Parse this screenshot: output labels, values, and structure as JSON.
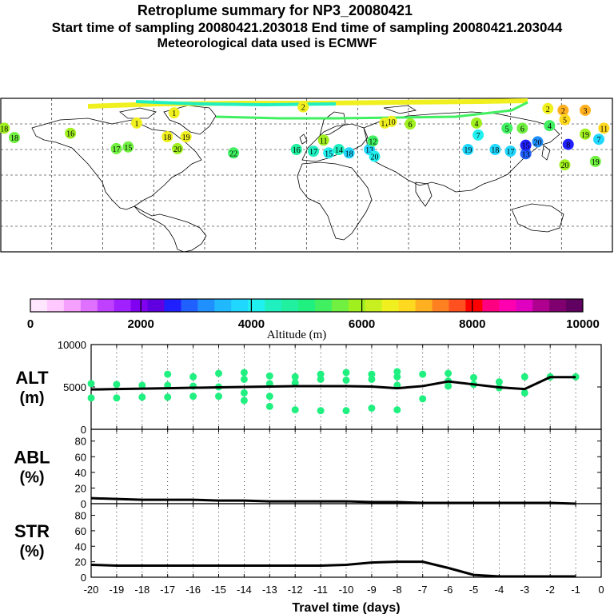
{
  "header": {
    "title": "Retroplume summary for NP3_20080421",
    "sampling": "Start time of sampling 20080421.203018     End time of sampling 20080421.203044",
    "met": "Meteorological data used is ECMWF"
  },
  "colorbar": {
    "label": "Altitude (m)",
    "ticks": [
      "0",
      "2000",
      "4000",
      "6000",
      "8000",
      "10000"
    ],
    "colors": [
      "#ffe6ff",
      "#ffc8ff",
      "#f5a0ff",
      "#e070ff",
      "#c040ff",
      "#a020ff",
      "#8000f0",
      "#6000e0",
      "#2020ff",
      "#2060ff",
      "#2090ff",
      "#20b8ff",
      "#20d8ff",
      "#20f0f0",
      "#20f0c0",
      "#20f0a0",
      "#20f080",
      "#40f060",
      "#70f040",
      "#a0f020",
      "#c8f020",
      "#f0f020",
      "#ffd820",
      "#ffb020",
      "#ff8020",
      "#ff5020",
      "#ff0000",
      "#ff0080",
      "#ff00b0",
      "#e000c0",
      "#b00090",
      "#800070",
      "#600060"
    ]
  },
  "map": {
    "description": "",
    "colors": {
      "ocean": "#ffffff",
      "coast": "#000000"
    }
  },
  "chart_data": [
    {
      "type": "line",
      "name": "ALT",
      "ylabel": "ALT\n(m)",
      "ylabel_lines": [
        "ALT",
        "(m)"
      ],
      "ylim": [
        0,
        10000
      ],
      "yticks": [
        "0",
        "5000",
        "10000"
      ],
      "x": [
        -20,
        -19,
        -18,
        -17,
        -16,
        -15,
        -14,
        -13,
        -12,
        -11,
        -10,
        -9,
        -8,
        -7,
        -6,
        -5,
        -4,
        -3,
        -2,
        -1
      ],
      "values": [
        4700,
        4750,
        4800,
        4850,
        4900,
        4950,
        5000,
        5050,
        5100,
        5100,
        5100,
        5050,
        4850,
        5100,
        5650,
        5300,
        4950,
        4750,
        6150,
        6150
      ],
      "scatter": [
        {
          "x": -20,
          "y": 5400
        },
        {
          "x": -20,
          "y": 3700
        },
        {
          "x": -19,
          "y": 5300
        },
        {
          "x": -19,
          "y": 3700
        },
        {
          "x": -18,
          "y": 5200
        },
        {
          "x": -18,
          "y": 3800
        },
        {
          "x": -17,
          "y": 6500
        },
        {
          "x": -17,
          "y": 5200
        },
        {
          "x": -17,
          "y": 3800
        },
        {
          "x": -16,
          "y": 6200
        },
        {
          "x": -16,
          "y": 5100
        },
        {
          "x": -16,
          "y": 3900
        },
        {
          "x": -15,
          "y": 6600
        },
        {
          "x": -15,
          "y": 5000
        },
        {
          "x": -15,
          "y": 3900
        },
        {
          "x": -14,
          "y": 6700
        },
        {
          "x": -14,
          "y": 5900
        },
        {
          "x": -14,
          "y": 4300
        },
        {
          "x": -14,
          "y": 3400
        },
        {
          "x": -13,
          "y": 6300
        },
        {
          "x": -13,
          "y": 5400
        },
        {
          "x": -13,
          "y": 3900
        },
        {
          "x": -13,
          "y": 2700
        },
        {
          "x": -12,
          "y": 6200
        },
        {
          "x": -12,
          "y": 5500
        },
        {
          "x": -12,
          "y": 2300
        },
        {
          "x": -11,
          "y": 6500
        },
        {
          "x": -11,
          "y": 5900
        },
        {
          "x": -11,
          "y": 2200
        },
        {
          "x": -10,
          "y": 6700
        },
        {
          "x": -10,
          "y": 5800
        },
        {
          "x": -10,
          "y": 2200
        },
        {
          "x": -9,
          "y": 6500
        },
        {
          "x": -9,
          "y": 5900
        },
        {
          "x": -9,
          "y": 2500
        },
        {
          "x": -8,
          "y": 6800
        },
        {
          "x": -8,
          "y": 6200
        },
        {
          "x": -8,
          "y": 5200
        },
        {
          "x": -8,
          "y": 2300
        },
        {
          "x": -7,
          "y": 6500
        },
        {
          "x": -7,
          "y": 3600
        },
        {
          "x": -6,
          "y": 6600
        },
        {
          "x": -6,
          "y": 5700
        },
        {
          "x": -6,
          "y": 5100
        },
        {
          "x": -5,
          "y": 6100
        },
        {
          "x": -5,
          "y": 5300
        },
        {
          "x": -4,
          "y": 5600
        },
        {
          "x": -4,
          "y": 4900
        },
        {
          "x": -3,
          "y": 6200
        },
        {
          "x": -3,
          "y": 4300
        },
        {
          "x": -2,
          "y": 6200
        },
        {
          "x": -1,
          "y": 6200
        }
      ]
    },
    {
      "type": "line",
      "name": "ABL",
      "ylabel_lines": [
        "ABL",
        "(%)"
      ],
      "ylim": [
        0,
        95
      ],
      "yticks": [
        "0",
        "20",
        "40",
        "60",
        "80"
      ],
      "x": [
        -20,
        -19,
        -18,
        -17,
        -16,
        -15,
        -14,
        -13,
        -12,
        -11,
        -10,
        -9,
        -8,
        -7,
        -6,
        -5,
        -4,
        -3,
        -2,
        -1
      ],
      "values": [
        7,
        6,
        5,
        5,
        5,
        4,
        4,
        3,
        3,
        3,
        3,
        2,
        2,
        1,
        1,
        1,
        1,
        1,
        1,
        0
      ]
    },
    {
      "type": "line",
      "name": "STR",
      "ylabel_lines": [
        "STR",
        "(%)"
      ],
      "ylim": [
        0,
        95
      ],
      "yticks": [
        "0",
        "20",
        "40",
        "60",
        "80"
      ],
      "x": [
        -20,
        -19,
        -18,
        -17,
        -16,
        -15,
        -14,
        -13,
        -12,
        -11,
        -10,
        -9,
        -8,
        -7,
        -6,
        -5,
        -4,
        -3,
        -2,
        -1
      ],
      "values": [
        16,
        15,
        15,
        15,
        15,
        15,
        15,
        15,
        15,
        15,
        16,
        19,
        20,
        20,
        12,
        3,
        1,
        1,
        1,
        1
      ],
      "xlabel": "Travel time (days)",
      "xticks": [
        "-20",
        "-19",
        "-18",
        "-17",
        "-16",
        "-15",
        "-14",
        "-13",
        "-12",
        "-11",
        "-10",
        "-9",
        "-8",
        "-7",
        "-6",
        "-5",
        "-4",
        "-3",
        "-2",
        "-1",
        "0"
      ]
    }
  ],
  "map_points": [
    {
      "label": "1",
      "lon": -78,
      "lat": 73,
      "color": "#f0f020"
    },
    {
      "label": "1",
      "lon": -100,
      "lat": 61,
      "color": "#f0f020"
    },
    {
      "label": "2",
      "lon": -2,
      "lat": 80,
      "color": "#f0f020"
    },
    {
      "label": "2",
      "lon": 142,
      "lat": 78,
      "color": "#f0f020"
    },
    {
      "label": "2",
      "lon": 151,
      "lat": 76,
      "color": "#ffb020"
    },
    {
      "label": "3",
      "lon": 164,
      "lat": 76,
      "color": "#ffb020"
    },
    {
      "label": "5",
      "lon": 152,
      "lat": 65,
      "color": "#ffd820"
    },
    {
      "label": "11",
      "lon": 175,
      "lat": 55,
      "color": "#ffd820"
    },
    {
      "label": "6",
      "lon": 61,
      "lat": 60,
      "color": "#a0f020"
    },
    {
      "label": "6",
      "lon": 127,
      "lat": 55,
      "color": "#70f040"
    },
    {
      "label": "5",
      "lon": 118,
      "lat": 55,
      "color": "#40f060"
    },
    {
      "label": "4",
      "lon": 143,
      "lat": 58,
      "color": "#40f060"
    },
    {
      "label": "4",
      "lon": 100,
      "lat": 61,
      "color": "#a0f020"
    },
    {
      "label": "11",
      "lon": 46,
      "lat": 61,
      "color": "#f0f020"
    },
    {
      "label": "10",
      "lon": 50,
      "lat": 63,
      "color": "#f0f020"
    },
    {
      "label": "16",
      "lon": -139,
      "lat": 49,
      "color": "#a0f020"
    },
    {
      "label": "18",
      "lon": -178,
      "lat": 55,
      "color": "#a0f020"
    },
    {
      "label": "18",
      "lon": -172,
      "lat": 44,
      "color": "#70f040"
    },
    {
      "label": "15",
      "lon": -105,
      "lat": 33,
      "color": "#70f040"
    },
    {
      "label": "17",
      "lon": -112,
      "lat": 31,
      "color": "#70f040"
    },
    {
      "label": "20",
      "lon": -76,
      "lat": 31,
      "color": "#a0f020"
    },
    {
      "label": "18",
      "lon": -82,
      "lat": 45,
      "color": "#f0f020"
    },
    {
      "label": "19",
      "lon": -71,
      "lat": 45,
      "color": "#f0f020"
    },
    {
      "label": "22",
      "lon": -43,
      "lat": 26,
      "color": "#40f060"
    },
    {
      "label": "16",
      "lon": -6,
      "lat": 30,
      "color": "#20f0a0"
    },
    {
      "label": "17",
      "lon": 4,
      "lat": 28,
      "color": "#20f0c0"
    },
    {
      "label": "15",
      "lon": 13,
      "lat": 26,
      "color": "#20f0f0"
    },
    {
      "label": "14",
      "lon": 19,
      "lat": 30,
      "color": "#20f0c0"
    },
    {
      "label": "18",
      "lon": 25,
      "lat": 26,
      "color": "#20d8ff"
    },
    {
      "label": "13",
      "lon": 37,
      "lat": 30,
      "color": "#20d8ff"
    },
    {
      "label": "20",
      "lon": 40,
      "lat": 22,
      "color": "#20f0f0"
    },
    {
      "label": "12",
      "lon": 39,
      "lat": 40,
      "color": "#40f060"
    },
    {
      "label": "11",
      "lon": 10,
      "lat": 41,
      "color": "#a0f020"
    },
    {
      "label": "19",
      "lon": 95,
      "lat": 30,
      "color": "#20d8ff"
    },
    {
      "label": "18",
      "lon": 111,
      "lat": 30,
      "color": "#20d8ff"
    },
    {
      "label": "17",
      "lon": 120,
      "lat": 28,
      "color": "#20d8ff"
    },
    {
      "label": "13",
      "lon": 129,
      "lat": 25,
      "color": "#2060ff"
    },
    {
      "label": "15",
      "lon": 129,
      "lat": 35,
      "color": "#2020ff"
    },
    {
      "label": "20",
      "lon": 136,
      "lat": 39,
      "color": "#2090ff"
    },
    {
      "label": "8",
      "lon": 154,
      "lat": 36,
      "color": "#2020ff"
    },
    {
      "label": "7",
      "lon": 101,
      "lat": 47,
      "color": "#20f0f0"
    },
    {
      "label": "7",
      "lon": 172,
      "lat": 42,
      "color": "#20d8ff"
    },
    {
      "label": "19",
      "lon": 164,
      "lat": 48,
      "color": "#a0f020"
    },
    {
      "label": "20",
      "lon": 152,
      "lat": 12,
      "color": "#a0f020"
    },
    {
      "label": "19",
      "lon": 170,
      "lat": 16,
      "color": "#70f040"
    }
  ],
  "map_meta": {
    "lon_range": [
      -180,
      180
    ],
    "lat_range": [
      -90,
      90
    ]
  }
}
